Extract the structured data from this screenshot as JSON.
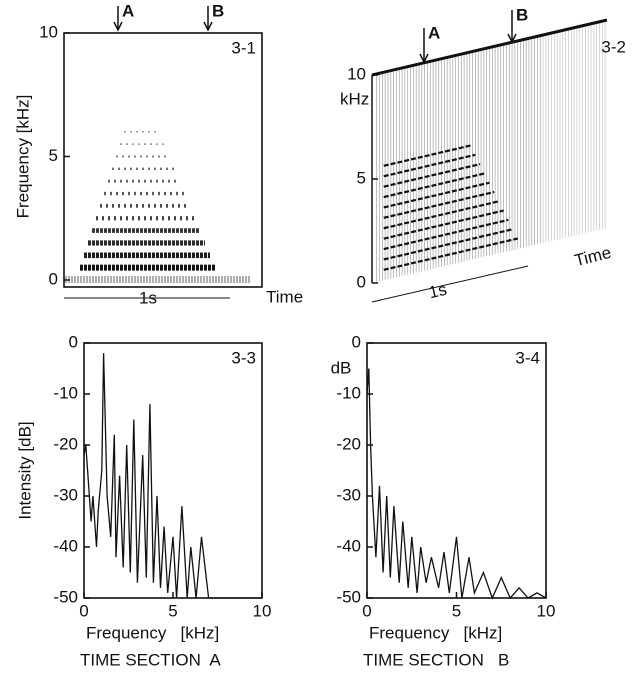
{
  "chart_data": [
    {
      "type": "spectrogram",
      "title": "3-1",
      "ylabel": "Frequency [kHz]",
      "xlabel": "Time",
      "ylim": [
        0,
        10
      ],
      "yticks": [
        0,
        5,
        10
      ],
      "scale_bar": "1s",
      "annotations": [
        "A",
        "B"
      ],
      "harmonics": [
        0.5,
        1.0,
        1.5,
        2.0,
        2.5,
        3.0,
        3.5,
        4.0,
        4.5,
        5.0,
        5.5,
        6.0
      ]
    },
    {
      "type": "waterfall",
      "title": "3-2",
      "ylabel": "kHz",
      "xlabel": "Time",
      "ylim": [
        0,
        10
      ],
      "yticks": [
        0,
        5,
        10
      ],
      "scale_bar": "1s",
      "annotations": [
        "A",
        "B"
      ],
      "harmonics": [
        0.5,
        1.0,
        1.5,
        2.0,
        2.5,
        3.0,
        3.5,
        4.0,
        4.5,
        5.0,
        5.5
      ]
    },
    {
      "type": "line",
      "title": "3-3",
      "ylabel": "Intensity [dB]",
      "xlabel": "Frequency   [kHz]",
      "caption": "TIME SECTION  A",
      "xlim": [
        0,
        10
      ],
      "xticks": [
        0,
        5,
        10
      ],
      "ylim": [
        -50,
        0
      ],
      "yticks": [
        0,
        -10,
        -20,
        -30,
        -40,
        -50
      ],
      "x": [
        0,
        0.1,
        0.2,
        0.4,
        0.5,
        0.7,
        0.8,
        1.0,
        1.1,
        1.3,
        1.5,
        1.7,
        1.8,
        2.0,
        2.2,
        2.4,
        2.6,
        2.8,
        3.0,
        3.3,
        3.5,
        3.7,
        3.9,
        4.1,
        4.3,
        4.5,
        4.7,
        5.0,
        5.2,
        5.5,
        5.8,
        6.0,
        6.3,
        6.6,
        7.0,
        7.5,
        8,
        9,
        10
      ],
      "values": [
        -22,
        -20,
        -25,
        -35,
        -30,
        -40,
        -33,
        -25,
        -2,
        -30,
        -38,
        -18,
        -42,
        -26,
        -44,
        -20,
        -45,
        -15,
        -47,
        -22,
        -46,
        -12,
        -47,
        -30,
        -48,
        -36,
        -49,
        -38,
        -50,
        -32,
        -50,
        -40,
        -50,
        -38,
        -50,
        -50,
        -50,
        -50,
        -50
      ]
    },
    {
      "type": "line",
      "title": "3-4",
      "ylabel": "dB",
      "xlabel": "Frequency   [kHz]",
      "caption": "TIME SECTION   B",
      "xlim": [
        0,
        10
      ],
      "xticks": [
        0,
        5,
        10
      ],
      "ylim": [
        -50,
        0
      ],
      "yticks": [
        0,
        -10,
        -20,
        -30,
        -40,
        -50
      ],
      "x": [
        0,
        0.1,
        0.2,
        0.3,
        0.5,
        0.7,
        0.9,
        1.1,
        1.3,
        1.5,
        1.8,
        2.0,
        2.3,
        2.5,
        2.8,
        3.0,
        3.3,
        3.6,
        4.0,
        4.3,
        4.6,
        5.0,
        5.3,
        5.7,
        6.0,
        6.5,
        7.0,
        7.5,
        8.0,
        8.5,
        9.0,
        9.5,
        10
      ],
      "values": [
        -10,
        -5,
        -20,
        -30,
        -42,
        -28,
        -45,
        -30,
        -46,
        -32,
        -47,
        -35,
        -48,
        -38,
        -49,
        -40,
        -47,
        -42,
        -48,
        -41,
        -49,
        -38,
        -50,
        -42,
        -49,
        -45,
        -50,
        -46,
        -50,
        -48,
        -50,
        -49,
        -50
      ]
    }
  ]
}
